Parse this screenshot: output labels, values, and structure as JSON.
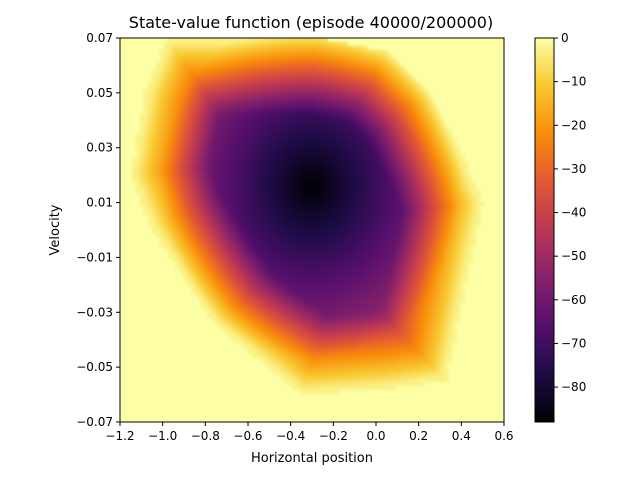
{
  "chart_data": {
    "type": "heatmap",
    "title": "State-value function (episode 40000/200000)",
    "xlabel": "Horizontal position",
    "ylabel": "Velocity",
    "xlim": [
      -1.2,
      0.6
    ],
    "ylim": [
      -0.07,
      0.07
    ],
    "x_ticks": [
      "−1.2",
      "−1.0",
      "−0.8",
      "−0.6",
      "−0.4",
      "−0.2",
      "0.0",
      "0.2",
      "0.4",
      "0.6"
    ],
    "y_ticks": [
      "−0.07",
      "−0.05",
      "−0.03",
      "−0.01",
      "0.01",
      "0.03",
      "0.05",
      "0.07"
    ],
    "colorbar": {
      "colormap": "inferno",
      "range": [
        -88,
        0
      ],
      "ticks": [
        "0",
        "−10",
        "−20",
        "−30",
        "−40",
        "−50",
        "−60",
        "−70",
        "−80"
      ]
    },
    "value_min": -88,
    "value_max": 0,
    "minimum_location": {
      "x": -0.3,
      "y": 0.016
    },
    "explored_region": {
      "description_points": [
        {
          "x": -0.28,
          "y": 0.07
        },
        {
          "x": 0.05,
          "y": 0.065
        },
        {
          "x": 0.25,
          "y": 0.05
        },
        {
          "x": 0.42,
          "y": 0.025
        },
        {
          "x": 0.5,
          "y": 0.01
        },
        {
          "x": 0.42,
          "y": -0.02
        },
        {
          "x": 0.33,
          "y": -0.055
        },
        {
          "x": 0.05,
          "y": -0.058
        },
        {
          "x": -0.35,
          "y": -0.06
        },
        {
          "x": -0.75,
          "y": -0.035
        },
        {
          "x": -1.05,
          "y": 0.0
        },
        {
          "x": -1.15,
          "y": 0.02
        },
        {
          "x": -1.08,
          "y": 0.05
        },
        {
          "x": -0.98,
          "y": 0.07
        }
      ],
      "outside_value": 0
    }
  }
}
